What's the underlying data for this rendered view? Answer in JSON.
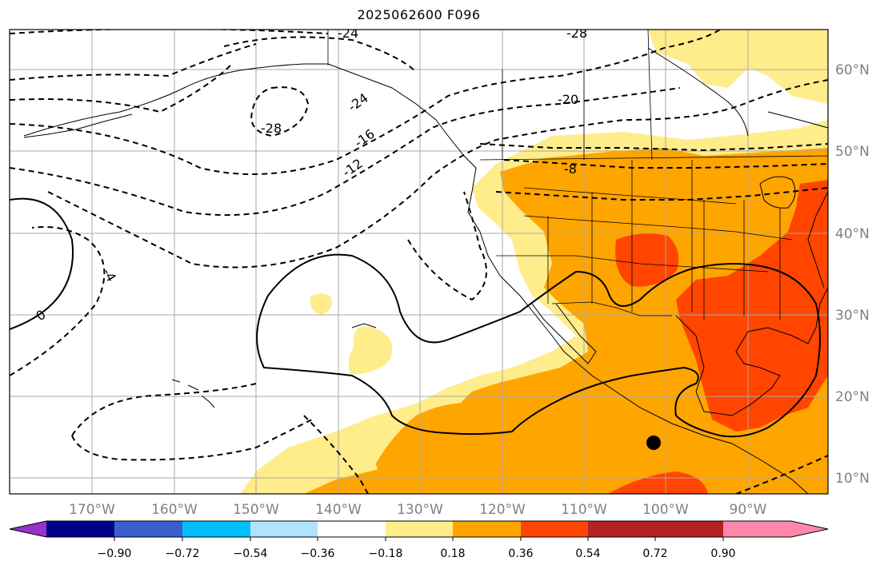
{
  "title": "2025062600 F096",
  "longitude_labels": [
    "170°W",
    "160°W",
    "150°W",
    "140°W",
    "130°W",
    "120°W",
    "110°W",
    "100°W",
    "90°W"
  ],
  "latitude_labels": [
    "60°N",
    "50°N",
    "40°N",
    "30°N",
    "20°N",
    "10°N"
  ],
  "colorbar": {
    "tick_labels": [
      "−0.90",
      "−0.72",
      "−0.54",
      "−0.36",
      "−0.18",
      "0.18",
      "0.36",
      "0.54",
      "0.72",
      "0.90"
    ],
    "colors": [
      "#9932cc",
      "#00008b",
      "#3a5fcd",
      "#00bfff",
      "#b0e2ff",
      "#ffffff",
      "#ffec8b",
      "#ffa500",
      "#ff4500",
      "#b22222",
      "#ff88aa"
    ]
  },
  "contour_labels": [
    "-24",
    "-28",
    "-28",
    "-24",
    "-20",
    "-16",
    "-12",
    "-8",
    "-4",
    "0"
  ],
  "fill_colors": {
    "light": "#ffec8b",
    "mid": "#ffa500",
    "high": "#ff4500"
  },
  "marker": "black-dot"
}
